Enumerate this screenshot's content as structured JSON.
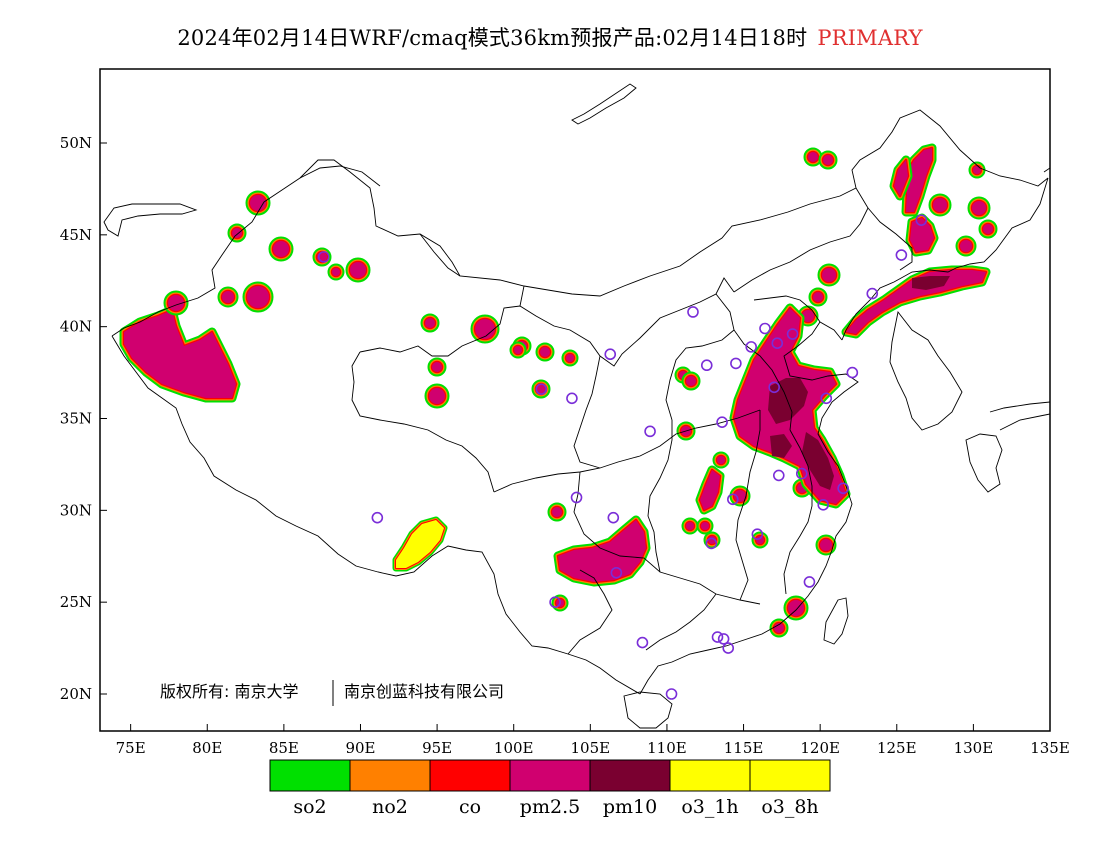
{
  "title": {
    "main": "2024年02月14日WRF/cmaq模式36km预报产品:02月14日18时",
    "tag": "PRIMARY",
    "tag_color": "#e03030"
  },
  "axes": {
    "lon_ticks": [
      "75E",
      "80E",
      "85E",
      "90E",
      "95E",
      "100E",
      "105E",
      "110E",
      "115E",
      "120E",
      "125E",
      "130E",
      "135E"
    ],
    "lat_ticks": [
      "50N",
      "45N",
      "40N",
      "35N",
      "30N",
      "25N",
      "20N"
    ],
    "lon_range": [
      73,
      135
    ],
    "lat_range": [
      18,
      54
    ]
  },
  "copyright": {
    "left": "版权所有: 南京大学",
    "right": "南京创蓝科技有限公司"
  },
  "legend": [
    {
      "label": "so2",
      "color": "#00e000"
    },
    {
      "label": "no2",
      "color": "#ff8000"
    },
    {
      "label": "co",
      "color": "#ff0000"
    },
    {
      "label": "pm2.5",
      "color": "#d0006f"
    },
    {
      "label": "pm10",
      "color": "#7a0030"
    },
    {
      "label": "o3_1h",
      "color": "#ffff00"
    },
    {
      "label": "o3_8h",
      "color": "#ffff00"
    }
  ],
  "stations": [
    [
      87.6,
      43.8
    ],
    [
      101.8,
      36.6
    ],
    [
      103.8,
      36.1
    ],
    [
      106.3,
      38.5
    ],
    [
      111.7,
      40.8
    ],
    [
      112.6,
      37.9
    ],
    [
      114.5,
      38.0
    ],
    [
      116.4,
      39.9
    ],
    [
      113.6,
      34.8
    ],
    [
      117.0,
      36.7
    ],
    [
      108.9,
      34.3
    ],
    [
      104.1,
      30.7
    ],
    [
      106.5,
      29.6
    ],
    [
      114.3,
      30.6
    ],
    [
      112.9,
      28.2
    ],
    [
      115.9,
      28.7
    ],
    [
      117.3,
      31.9
    ],
    [
      118.8,
      32.0
    ],
    [
      121.5,
      31.2
    ],
    [
      120.2,
      30.3
    ],
    [
      119.3,
      26.1
    ],
    [
      113.3,
      23.1
    ],
    [
      108.4,
      22.8
    ],
    [
      110.3,
      20.0
    ],
    [
      106.7,
      26.6
    ],
    [
      102.7,
      25.0
    ],
    [
      91.1,
      29.6
    ],
    [
      123.4,
      41.8
    ],
    [
      125.3,
      43.9
    ],
    [
      126.6,
      45.8
    ],
    [
      117.2,
      39.1
    ],
    [
      118.2,
      39.6
    ],
    [
      115.5,
      38.9
    ],
    [
      114.0,
      22.5
    ],
    [
      122.1,
      37.5
    ],
    [
      113.7,
      23.0
    ],
    [
      120.4,
      36.1
    ]
  ],
  "station_color": "#7a2ed8"
}
